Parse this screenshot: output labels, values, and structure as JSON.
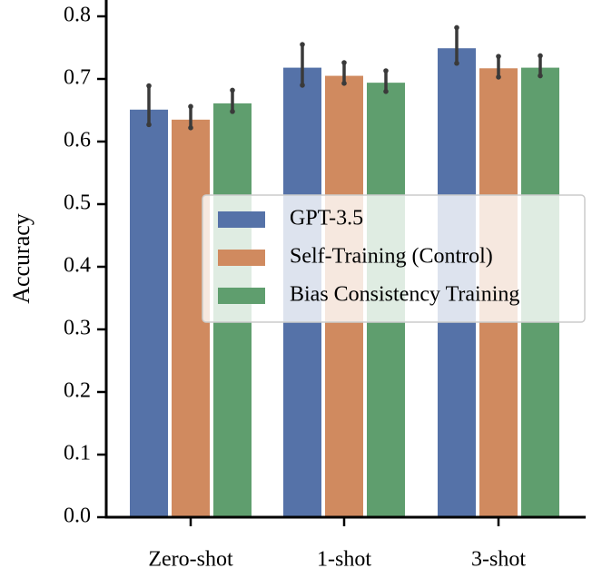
{
  "chart_data": {
    "type": "bar",
    "title": "",
    "xlabel": "",
    "ylabel": "Accuracy",
    "ylim": [
      0,
      0.8
    ],
    "yticks": [
      "0.0",
      "0.1",
      "0.2",
      "0.3",
      "0.4",
      "0.5",
      "0.6",
      "0.7",
      "0.8"
    ],
    "categories": [
      "Zero-shot",
      "1-shot",
      "3-shot"
    ],
    "series": [
      {
        "name": "GPT-3.5",
        "color": "#5572a8",
        "values": [
          0.651,
          0.718,
          0.749
        ],
        "error_low": [
          0.627,
          0.69,
          0.725
        ],
        "error_high": [
          0.689,
          0.755,
          0.782
        ]
      },
      {
        "name": "Self-Training (Control)",
        "color": "#d08a5f",
        "values": [
          0.635,
          0.705,
          0.717
        ],
        "error_low": [
          0.622,
          0.693,
          0.703
        ],
        "error_high": [
          0.656,
          0.726,
          0.736
        ]
      },
      {
        "name": "Bias Consistency Training",
        "color": "#5f9e6e",
        "values": [
          0.661,
          0.694,
          0.718
        ],
        "error_low": [
          0.648,
          0.68,
          0.705
        ],
        "error_high": [
          0.682,
          0.713,
          0.737
        ]
      }
    ],
    "legend_position": "center-right",
    "grid": false
  }
}
